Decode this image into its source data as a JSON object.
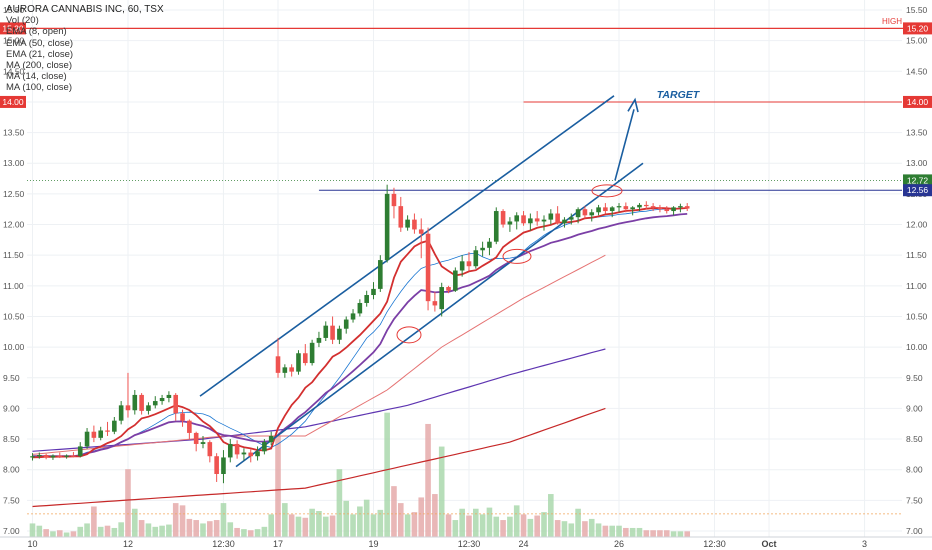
{
  "header": {
    "title": "AURORA CANNABIS INC, 60, TSX",
    "indicators": [
      "Vol (20)",
      "EMA (8, open)",
      "EMA (50, close)",
      "EMA (21, close)",
      "MA (200, close)",
      "MA (14, close)",
      "MA (100, close)"
    ]
  },
  "labels": {
    "high": "HIGH",
    "target": "TARGET"
  },
  "colors": {
    "up": "#2e7d32",
    "down": "#ef5350",
    "vol_up": "#a5d6a7",
    "vol_down": "#e3a5a5",
    "channel": "#1a5ea0",
    "ema8": "#d32f2f",
    "ema21": "#7b3fa6",
    "ma14": "#1976d2",
    "ma100": "#e57373",
    "ma200": "#c62828",
    "ma50": "#5e35b1"
  },
  "chart_data": {
    "type": "candlestick",
    "title": "AURORA CANNABIS INC, 60, TSX",
    "ylim": [
      6.96,
      15.6
    ],
    "price_ticks": [
      "15.50",
      "15.00",
      "14.50",
      "14.00",
      "13.50",
      "13.00",
      "12.50",
      "12.00",
      "11.50",
      "11.00",
      "10.50",
      "10.00",
      "9.50",
      "9.00",
      "8.50",
      "8.00",
      "7.50",
      "7.00"
    ],
    "date_ticks": [
      {
        "label": "10",
        "bar": 0
      },
      {
        "label": "12",
        "bar": 14
      },
      {
        "label": "12:30",
        "bar": 28
      },
      {
        "label": "17",
        "bar": 36
      },
      {
        "label": "19",
        "bar": 50
      },
      {
        "label": "12:30",
        "bar": 64
      },
      {
        "label": "24",
        "bar": 72
      },
      {
        "label": "26",
        "bar": 86
      },
      {
        "label": "12:30",
        "bar": 100
      },
      {
        "label": "Oct",
        "bar": 108,
        "bold": true
      },
      {
        "label": "3",
        "bar": 122
      }
    ],
    "price_labels": [
      {
        "value": 15.2,
        "text": "15.20",
        "bg": "#e53935",
        "fg": "#ffffff"
      },
      {
        "value": 14.0,
        "text": "14.00",
        "bg": "#e53935",
        "fg": "#ffffff"
      },
      {
        "value": 12.72,
        "text": "12.72",
        "bg": "#2e7d32",
        "fg": "#ffffff"
      },
      {
        "value": 12.56,
        "text": "12.56",
        "bg": "#283593",
        "fg": "#ffffff"
      }
    ],
    "candles": [
      [
        8.2,
        8.27,
        8.15,
        8.22,
        1.2
      ],
      [
        8.22,
        8.28,
        8.18,
        8.24,
        1.0
      ],
      [
        8.24,
        8.26,
        8.17,
        8.2,
        0.7
      ],
      [
        8.2,
        8.25,
        8.16,
        8.23,
        0.5
      ],
      [
        8.23,
        8.28,
        8.19,
        8.21,
        0.6
      ],
      [
        8.21,
        8.25,
        8.18,
        8.23,
        0.4
      ],
      [
        8.23,
        8.29,
        8.2,
        8.22,
        0.5
      ],
      [
        8.22,
        8.45,
        8.2,
        8.38,
        0.9
      ],
      [
        8.38,
        8.68,
        8.34,
        8.62,
        1.2
      ],
      [
        8.62,
        8.72,
        8.45,
        8.52,
        2.7
      ],
      [
        8.52,
        8.7,
        8.48,
        8.64,
        0.9
      ],
      [
        8.64,
        8.78,
        8.55,
        8.62,
        1.0
      ],
      [
        8.62,
        8.86,
        8.58,
        8.8,
        0.8
      ],
      [
        8.8,
        9.12,
        8.74,
        9.05,
        1.3
      ],
      [
        9.05,
        9.58,
        8.85,
        8.97,
        6.0
      ],
      [
        8.97,
        9.3,
        8.9,
        9.22,
        2.5
      ],
      [
        9.22,
        9.25,
        8.9,
        8.96,
        1.5
      ],
      [
        8.96,
        9.1,
        8.9,
        9.05,
        1.2
      ],
      [
        9.05,
        9.2,
        9.0,
        9.12,
        0.9
      ],
      [
        9.12,
        9.22,
        9.06,
        9.17,
        1.0
      ],
      [
        9.17,
        9.28,
        9.1,
        9.22,
        1.1
      ],
      [
        9.22,
        9.25,
        8.8,
        8.92,
        3.0
      ],
      [
        8.92,
        8.98,
        8.7,
        8.8,
        2.8
      ],
      [
        8.8,
        8.82,
        8.5,
        8.6,
        1.6
      ],
      [
        8.6,
        8.62,
        8.3,
        8.42,
        1.5
      ],
      [
        8.42,
        8.55,
        8.35,
        8.45,
        1.2
      ],
      [
        8.45,
        8.48,
        8.12,
        8.22,
        1.4
      ],
      [
        8.22,
        8.27,
        7.8,
        7.93,
        1.5
      ],
      [
        7.93,
        8.32,
        7.78,
        8.2,
        3.0
      ],
      [
        8.2,
        8.5,
        8.12,
        8.42,
        1.3
      ],
      [
        8.42,
        8.48,
        8.18,
        8.25,
        0.8
      ],
      [
        8.25,
        8.35,
        8.15,
        8.28,
        0.7
      ],
      [
        8.28,
        8.33,
        8.12,
        8.22,
        0.6
      ],
      [
        8.22,
        8.38,
        8.15,
        8.3,
        0.7
      ],
      [
        8.3,
        8.5,
        8.25,
        8.45,
        0.9
      ],
      [
        8.45,
        8.62,
        8.4,
        8.55,
        2.0
      ],
      [
        9.85,
        10.15,
        9.5,
        9.58,
        9.0
      ],
      [
        9.58,
        9.72,
        9.5,
        9.67,
        3.0
      ],
      [
        9.67,
        9.72,
        9.52,
        9.6,
        2.0
      ],
      [
        9.6,
        9.95,
        9.55,
        9.9,
        1.8
      ],
      [
        9.9,
        10.05,
        9.7,
        9.74,
        1.7
      ],
      [
        9.74,
        10.12,
        9.7,
        10.07,
        2.5
      ],
      [
        10.07,
        10.25,
        10.0,
        10.15,
        2.3
      ],
      [
        10.15,
        10.42,
        10.1,
        10.35,
        1.8
      ],
      [
        10.35,
        10.5,
        10.05,
        10.12,
        1.9
      ],
      [
        10.12,
        10.35,
        10.05,
        10.3,
        6.0
      ],
      [
        10.3,
        10.5,
        10.22,
        10.45,
        3.2
      ],
      [
        10.45,
        10.62,
        10.4,
        10.55,
        2.0
      ],
      [
        10.55,
        10.78,
        10.5,
        10.72,
        2.7
      ],
      [
        10.72,
        10.92,
        10.66,
        10.85,
        3.3
      ],
      [
        10.85,
        11.06,
        10.78,
        10.95,
        2.0
      ],
      [
        10.95,
        11.5,
        10.9,
        11.42,
        2.4
      ],
      [
        11.42,
        12.65,
        11.38,
        12.5,
        11.0
      ],
      [
        12.5,
        12.6,
        12.1,
        12.3,
        4.5
      ],
      [
        12.3,
        12.45,
        11.88,
        11.95,
        3.0
      ],
      [
        11.95,
        12.15,
        11.9,
        12.08,
        2.0
      ],
      [
        12.08,
        12.18,
        11.85,
        11.92,
        2.2
      ],
      [
        11.92,
        12.1,
        11.45,
        11.85,
        3.5
      ],
      [
        11.85,
        11.95,
        10.6,
        10.75,
        10.0
      ],
      [
        10.75,
        10.9,
        10.58,
        10.68,
        3.8
      ],
      [
        10.62,
        11.05,
        10.5,
        10.98,
        8.0
      ],
      [
        10.98,
        11.0,
        10.88,
        10.92,
        2.0
      ],
      [
        10.92,
        11.3,
        10.9,
        11.25,
        1.5
      ],
      [
        11.25,
        11.5,
        11.15,
        11.4,
        2.5
      ],
      [
        11.4,
        11.55,
        11.25,
        11.32,
        1.9
      ],
      [
        11.32,
        11.65,
        11.28,
        11.58,
        2.5
      ],
      [
        11.58,
        11.72,
        11.48,
        11.62,
        2.0
      ],
      [
        11.62,
        11.78,
        11.5,
        11.72,
        2.6
      ],
      [
        11.72,
        12.28,
        11.68,
        12.22,
        1.8
      ],
      [
        12.22,
        12.25,
        11.95,
        12.0,
        1.5
      ],
      [
        12.0,
        12.12,
        11.88,
        12.05,
        1.8
      ],
      [
        12.05,
        12.2,
        11.92,
        12.15,
        2.8
      ],
      [
        12.15,
        12.22,
        11.98,
        12.02,
        2.0
      ],
      [
        12.02,
        12.18,
        11.9,
        12.1,
        1.6
      ],
      [
        12.1,
        12.22,
        11.98,
        12.05,
        1.9
      ],
      [
        12.05,
        12.15,
        11.9,
        12.08,
        2.2
      ],
      [
        12.08,
        12.25,
        12.0,
        12.18,
        3.8
      ],
      [
        12.18,
        12.3,
        12.0,
        12.02,
        1.5
      ],
      [
        12.02,
        12.12,
        11.95,
        12.08,
        1.4
      ],
      [
        12.08,
        12.18,
        12.0,
        12.12,
        1.2
      ],
      [
        12.12,
        12.28,
        12.02,
        12.25,
        2.5
      ],
      [
        12.25,
        12.3,
        12.1,
        12.15,
        1.4
      ],
      [
        12.15,
        12.25,
        12.05,
        12.2,
        1.6
      ],
      [
        12.2,
        12.32,
        12.15,
        12.28,
        1.2
      ],
      [
        12.28,
        12.35,
        12.18,
        12.22,
        1.0
      ],
      [
        12.22,
        12.3,
        12.12,
        12.28,
        1.0
      ],
      [
        12.28,
        12.35,
        12.2,
        12.3,
        1.0
      ],
      [
        12.3,
        12.36,
        12.2,
        12.25,
        0.8
      ],
      [
        12.25,
        12.3,
        12.15,
        12.28,
        0.8
      ],
      [
        12.28,
        12.35,
        12.22,
        12.32,
        0.8
      ],
      [
        12.32,
        12.38,
        12.25,
        12.3,
        0.6
      ],
      [
        12.3,
        12.35,
        12.22,
        12.28,
        0.6
      ],
      [
        12.28,
        12.32,
        12.2,
        12.25,
        0.6
      ],
      [
        12.25,
        12.3,
        12.18,
        12.22,
        0.6
      ],
      [
        12.22,
        12.3,
        12.15,
        12.28,
        0.5
      ],
      [
        12.28,
        12.34,
        12.2,
        12.3,
        0.5
      ],
      [
        12.3,
        12.35,
        12.22,
        12.26,
        0.5
      ]
    ]
  }
}
